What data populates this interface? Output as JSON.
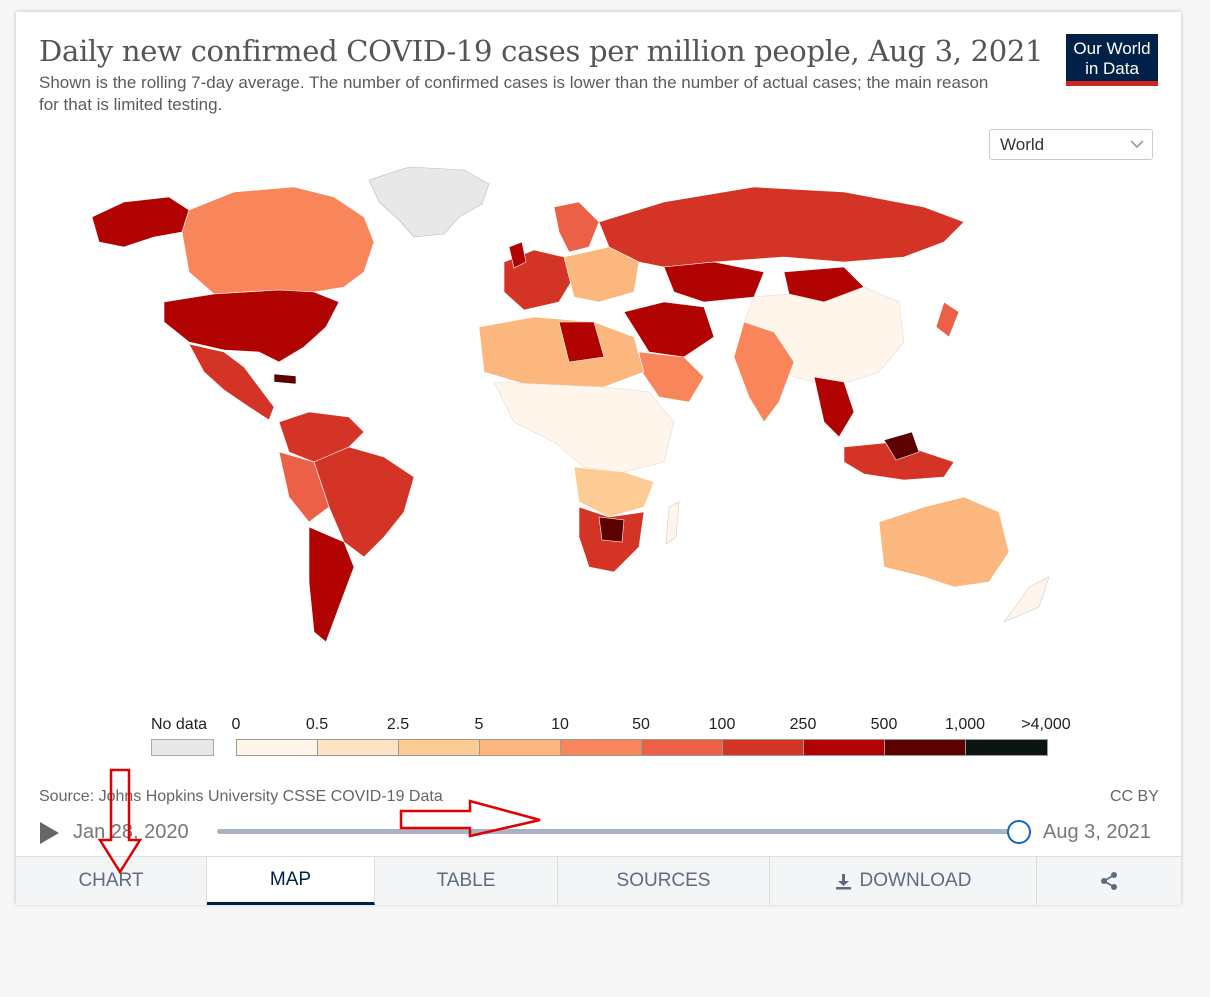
{
  "title": "Daily new confirmed COVID-19 cases per million people, Aug 3, 2021",
  "subtitle": "Shown is the rolling 7-day average. The number of confirmed cases is lower than the number of actual cases; the main reason for that is limited testing.",
  "logo": {
    "line1": "Our World",
    "line2": "in Data"
  },
  "region_select": {
    "value": "World"
  },
  "legend": {
    "no_data_label": "No data",
    "no_data_color": "#e8e8e8",
    "ticks": [
      "0",
      "0.5",
      "2.5",
      "5",
      "10",
      "50",
      "100",
      "250",
      "500",
      "1,000",
      ">4,000"
    ],
    "colors": [
      "#fff5eb",
      "#fde3c4",
      "#fdcb94",
      "#fcb77f",
      "#f9865a",
      "#ec6048",
      "#d43425",
      "#b20303",
      "#5c0000",
      "#0c1414"
    ]
  },
  "source": "Source: Johns Hopkins University CSSE COVID-19 Data",
  "license": "CC BY",
  "timeline": {
    "start": "Jan 28, 2020",
    "end": "Aug 3, 2021",
    "position": 1.0
  },
  "tabs": [
    {
      "label": "CHART",
      "active": false
    },
    {
      "label": "MAP",
      "active": true
    },
    {
      "label": "TABLE",
      "active": false
    },
    {
      "label": "SOURCES",
      "active": false
    },
    {
      "label": "DOWNLOAD",
      "active": false
    }
  ],
  "icons": {
    "play": "play-icon",
    "download": "download-icon",
    "share": "share-icon",
    "dropdown": "chevron-down-icon"
  },
  "accent_color": "#002147",
  "annotation_color": "#e00000"
}
